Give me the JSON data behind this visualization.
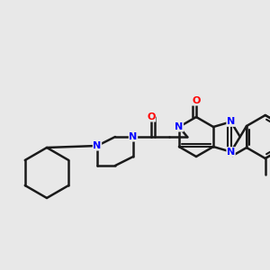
{
  "background_color": "#e8e8e8",
  "bond_color": "#1a1a1a",
  "N_color": "#0000ff",
  "O_color": "#ff0000",
  "figsize": [
    3.0,
    3.0
  ],
  "dpi": 100,
  "xlim": [
    0,
    300
  ],
  "ylim": [
    0,
    300
  ]
}
